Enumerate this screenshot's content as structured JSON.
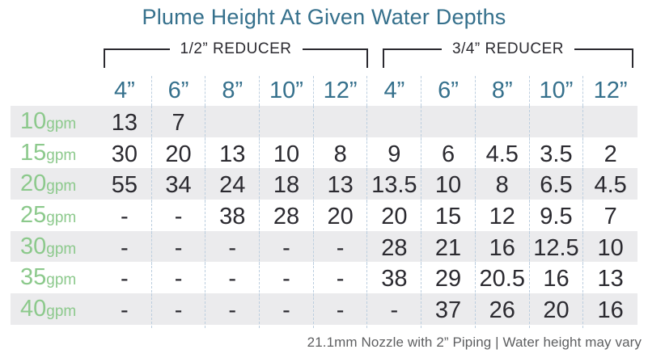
{
  "title": "Plume Height At Given Water Depths",
  "groups": [
    {
      "label": "1/2” REDUCER"
    },
    {
      "label": "3/4” REDUCER"
    }
  ],
  "footer": "21.1mm Nozzle with 2” Piping |  Water height may vary",
  "colors": {
    "teal": "#35708C",
    "green": "#8CC98C",
    "ink": "#2B2A30",
    "stripe": "#EBEBED",
    "dash": "#BCCEDF",
    "muted": "#5E5F61"
  },
  "chart_data": {
    "type": "table",
    "title": "Plume Height At Given Water Depths",
    "column_groups": [
      "1/2” REDUCER",
      "3/4” REDUCER"
    ],
    "column_headers": [
      "4”",
      "6”",
      "8”",
      "10”",
      "12”",
      "4”",
      "6”",
      "8”",
      "10”",
      "12”"
    ],
    "row_unit": "gpm",
    "rows": [
      {
        "flow": "10",
        "unit": "gpm",
        "values": [
          "13",
          "7",
          "",
          "",
          "",
          "",
          "",
          "",
          "",
          ""
        ]
      },
      {
        "flow": "15",
        "unit": "gpm",
        "values": [
          "30",
          "20",
          "13",
          "10",
          "8",
          "9",
          "6",
          "4.5",
          "3.5",
          "2"
        ]
      },
      {
        "flow": "20",
        "unit": "gpm",
        "values": [
          "55",
          "34",
          "24",
          "18",
          "13",
          "13.5",
          "10",
          "8",
          "6.5",
          "4.5"
        ]
      },
      {
        "flow": "25",
        "unit": "gpm",
        "values": [
          "-",
          "-",
          "38",
          "28",
          "20",
          "20",
          "15",
          "12",
          "9.5",
          "7"
        ]
      },
      {
        "flow": "30",
        "unit": "gpm",
        "values": [
          "-",
          "-",
          "-",
          "-",
          "-",
          "28",
          "21",
          "16",
          "12.5",
          "10"
        ]
      },
      {
        "flow": "35",
        "unit": "gpm",
        "values": [
          "-",
          "-",
          "-",
          "-",
          "-",
          "38",
          "29",
          "20.5",
          "16",
          "13"
        ]
      },
      {
        "flow": "40",
        "unit": "gpm",
        "values": [
          "-",
          "-",
          "-",
          "-",
          "-",
          "-",
          "37",
          "26",
          "20",
          "16"
        ]
      }
    ],
    "footnote": "21.1mm Nozzle with 2” Piping | Water height may vary"
  }
}
